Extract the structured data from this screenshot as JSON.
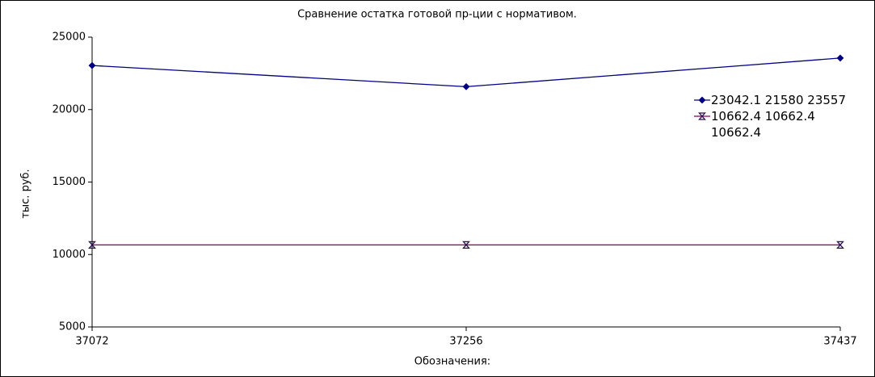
{
  "chart_data": {
    "type": "line",
    "title": "Сравнение остатка готовой пр-ции с нормативом.",
    "x_label": "Обозначения:",
    "y_label": "тыс. руб.",
    "categories": [
      "37072",
      "37256",
      "37437"
    ],
    "series": [
      {
        "name": "23042.1 21580 23557",
        "color": "#000080",
        "marker": "diamond",
        "values": [
          23042.1,
          21580,
          23557
        ]
      },
      {
        "name": "10662.4 10662.4 10662.4",
        "color": "#800060",
        "marker": "hourglass",
        "values": [
          10662.4,
          10662.4,
          10662.4
        ]
      }
    ],
    "ylim": [
      5000,
      25000
    ],
    "yticks": [
      5000,
      10000,
      15000,
      20000,
      25000
    ],
    "grid": false,
    "legend": "right"
  }
}
